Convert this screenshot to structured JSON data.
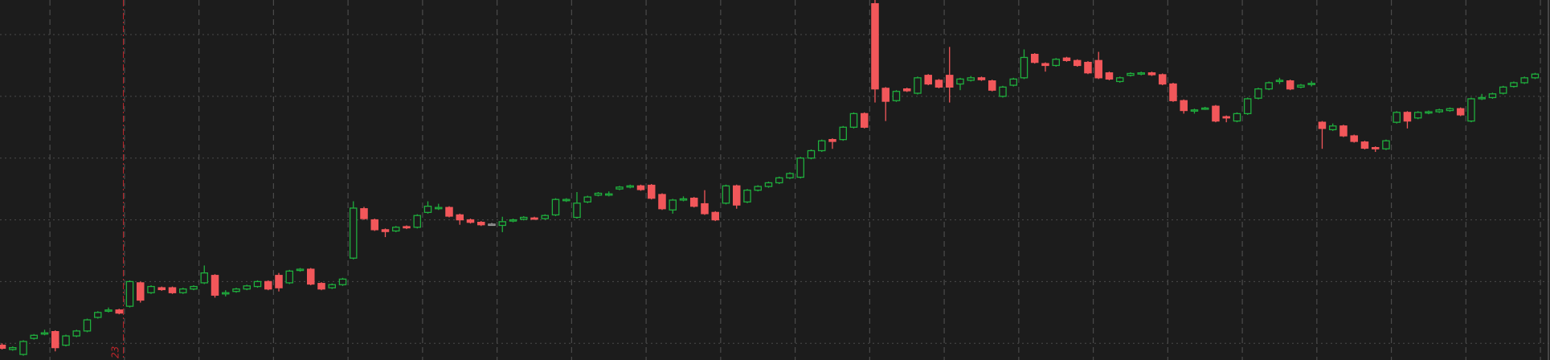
{
  "chart_data": {
    "type": "candlestick",
    "x": [
      0,
      1,
      2,
      3,
      4,
      5,
      6,
      7,
      8,
      9,
      10,
      11,
      12,
      13,
      14,
      15,
      16,
      17,
      18,
      19,
      20,
      21,
      22,
      23,
      24,
      25,
      26,
      27,
      28,
      29,
      30,
      31,
      32,
      33,
      34,
      35,
      36,
      37,
      38,
      39,
      40,
      41,
      42,
      43,
      44,
      45,
      46,
      47,
      48,
      49,
      50,
      51,
      52,
      53,
      54,
      55,
      56,
      57,
      58,
      59,
      60,
      61,
      62,
      63,
      64,
      65,
      66,
      67,
      68,
      69,
      70,
      71,
      72,
      73,
      74,
      75,
      76,
      77,
      78,
      79,
      80,
      81,
      82,
      83,
      84,
      85,
      86,
      87,
      88,
      89,
      90,
      91,
      92,
      93,
      94,
      95,
      96,
      97,
      98,
      99,
      100,
      101,
      102,
      103,
      104,
      105,
      106,
      107,
      108,
      109,
      110,
      111,
      112,
      113,
      114,
      115,
      116,
      117,
      118,
      119,
      120,
      121,
      122,
      123,
      124,
      125,
      126,
      127,
      128,
      129,
      130,
      131,
      132,
      133,
      134,
      135,
      136,
      137,
      138,
      139,
      140,
      141,
      142,
      143,
      144
    ],
    "open": [
      0.97,
      0.9,
      0.82,
      1.08,
      1.15,
      1.19,
      0.97,
      1.12,
      1.2,
      1.42,
      1.52,
      1.54,
      1.6,
      1.98,
      1.82,
      1.9,
      1.9,
      1.82,
      1.88,
      1.98,
      2.1,
      1.8,
      1.84,
      1.88,
      1.92,
      2.0,
      2.1,
      1.98,
      2.18,
      2.2,
      1.97,
      1.9,
      1.95,
      2.38,
      3.18,
      3.0,
      2.84,
      2.82,
      2.89,
      2.88,
      3.12,
      3.18,
      3.2,
      3.08,
      3.0,
      2.96,
      2.93,
      2.91,
      2.98,
      3.01,
      3.03,
      3.02,
      3.08,
      3.31,
      3.04,
      3.29,
      3.4,
      3.4,
      3.5,
      3.53,
      3.55,
      3.56,
      3.41,
      3.16,
      3.32,
      3.35,
      3.26,
      3.12,
      3.27,
      3.55,
      3.29,
      3.48,
      3.54,
      3.6,
      3.68,
      3.69,
      4.0,
      4.12,
      4.3,
      4.3,
      4.5,
      4.72,
      6.5,
      5.13,
      4.93,
      5.12,
      5.05,
      5.34,
      5.26,
      5.34,
      5.2,
      5.26,
      5.3,
      5.25,
      5.0,
      5.18,
      5.3,
      5.68,
      5.53,
      5.5,
      5.62,
      5.58,
      5.55,
      5.58,
      5.38,
      5.24,
      5.34,
      5.36,
      5.38,
      5.35,
      5.2,
      4.93,
      4.77,
      4.8,
      4.84,
      4.67,
      4.6,
      4.72,
      4.97,
      5.12,
      5.24,
      5.25,
      5.15,
      5.2,
      4.58,
      4.46,
      4.52,
      4.36,
      4.26,
      4.17,
      4.15,
      4.58,
      4.74,
      4.65,
      4.73,
      4.75,
      4.77,
      4.8,
      4.6,
      4.96,
      4.98,
      5.05,
      5.16,
      5.22,
      5.3
    ],
    "high": [
      1.0,
      0.95,
      1.05,
      1.15,
      1.22,
      1.21,
      1.14,
      1.22,
      1.4,
      1.52,
      1.58,
      1.56,
      2.02,
      2.0,
      1.94,
      1.92,
      1.92,
      1.9,
      1.94,
      2.26,
      2.12,
      1.86,
      1.9,
      1.95,
      2.02,
      2.02,
      2.14,
      2.19,
      2.22,
      2.22,
      1.99,
      1.97,
      2.06,
      3.3,
      3.21,
      3.02,
      2.86,
      2.9,
      2.91,
      3.09,
      3.3,
      3.26,
      3.22,
      3.1,
      3.02,
      2.98,
      2.95,
      3.05,
      3.02,
      3.06,
      3.05,
      3.09,
      3.35,
      3.35,
      3.45,
      3.39,
      3.45,
      3.46,
      3.55,
      3.57,
      3.57,
      3.58,
      3.43,
      3.34,
      3.38,
      3.37,
      3.48,
      3.14,
      3.57,
      3.57,
      3.5,
      3.56,
      3.62,
      3.7,
      3.77,
      4.02,
      4.14,
      4.3,
      4.32,
      4.52,
      4.74,
      4.74,
      6.56,
      5.15,
      5.1,
      5.14,
      5.32,
      5.36,
      5.28,
      5.8,
      5.3,
      5.33,
      5.32,
      5.27,
      5.17,
      5.3,
      5.76,
      5.7,
      5.55,
      5.62,
      5.64,
      5.6,
      5.57,
      5.72,
      5.4,
      5.32,
      5.39,
      5.4,
      5.4,
      5.37,
      5.22,
      4.95,
      4.8,
      4.83,
      4.86,
      4.69,
      4.74,
      4.98,
      5.14,
      5.24,
      5.3,
      5.27,
      5.2,
      5.25,
      4.6,
      4.56,
      4.54,
      4.38,
      4.28,
      4.19,
      4.3,
      4.76,
      4.76,
      4.76,
      4.77,
      4.8,
      4.82,
      4.82,
      4.98,
      5.04,
      5.06,
      5.17,
      5.24,
      5.32,
      5.38
    ],
    "low": [
      0.9,
      0.88,
      0.8,
      1.06,
      1.13,
      0.87,
      0.95,
      1.1,
      1.18,
      1.4,
      1.5,
      1.47,
      1.58,
      1.66,
      1.8,
      1.85,
      1.8,
      1.8,
      1.86,
      1.96,
      1.74,
      1.76,
      1.82,
      1.86,
      1.9,
      1.86,
      1.84,
      1.96,
      2.16,
      1.94,
      1.86,
      1.88,
      1.93,
      2.36,
      3.0,
      2.82,
      2.72,
      2.8,
      2.85,
      2.86,
      3.1,
      3.16,
      3.04,
      2.92,
      2.94,
      2.9,
      2.91,
      2.8,
      2.96,
      2.99,
      3.0,
      3.0,
      3.06,
      3.29,
      3.02,
      3.27,
      3.38,
      3.38,
      3.48,
      3.51,
      3.47,
      3.33,
      3.16,
      3.1,
      3.3,
      3.2,
      3.08,
      2.98,
      3.25,
      3.18,
      3.27,
      3.46,
      3.52,
      3.58,
      3.66,
      3.67,
      3.98,
      4.1,
      4.15,
      4.28,
      4.48,
      4.48,
      4.9,
      4.6,
      4.91,
      5.07,
      5.03,
      5.18,
      5.13,
      4.9,
      5.1,
      5.24,
      5.25,
      5.08,
      4.98,
      5.16,
      5.28,
      5.53,
      5.4,
      5.48,
      5.56,
      5.48,
      5.36,
      5.28,
      5.26,
      5.22,
      5.32,
      5.34,
      5.33,
      5.18,
      4.91,
      4.72,
      4.72,
      4.78,
      4.58,
      4.58,
      4.58,
      4.7,
      4.95,
      5.1,
      5.2,
      5.1,
      5.13,
      5.16,
      4.15,
      4.44,
      4.34,
      4.25,
      4.14,
      4.1,
      4.13,
      4.56,
      4.48,
      4.63,
      4.71,
      4.73,
      4.75,
      4.68,
      4.58,
      4.94,
      4.96,
      5.03,
      5.14,
      5.2,
      5.28
    ],
    "close": [
      0.92,
      0.93,
      1.03,
      1.13,
      1.17,
      0.93,
      1.12,
      1.2,
      1.38,
      1.5,
      1.54,
      1.49,
      2.0,
      1.7,
      1.92,
      1.87,
      1.82,
      1.88,
      1.92,
      2.14,
      1.78,
      1.82,
      1.88,
      1.93,
      2.0,
      1.88,
      1.9,
      2.17,
      2.2,
      1.96,
      1.88,
      1.95,
      2.04,
      3.19,
      3.02,
      2.84,
      2.81,
      2.88,
      2.87,
      3.07,
      3.22,
      3.2,
      3.06,
      3.0,
      2.96,
      2.92,
      2.93,
      2.97,
      3.0,
      3.04,
      3.02,
      3.07,
      3.33,
      3.33,
      3.27,
      3.37,
      3.43,
      3.42,
      3.53,
      3.55,
      3.49,
      3.35,
      3.18,
      3.32,
      3.34,
      3.22,
      3.1,
      3.0,
      3.55,
      3.24,
      3.48,
      3.54,
      3.6,
      3.68,
      3.75,
      4.0,
      4.12,
      4.28,
      4.27,
      4.5,
      4.72,
      4.5,
      5.12,
      4.92,
      5.08,
      5.09,
      5.3,
      5.2,
      5.15,
      5.15,
      5.28,
      5.3,
      5.27,
      5.1,
      5.15,
      5.28,
      5.63,
      5.55,
      5.5,
      5.6,
      5.58,
      5.5,
      5.38,
      5.3,
      5.28,
      5.3,
      5.37,
      5.38,
      5.35,
      5.2,
      4.93,
      4.77,
      4.78,
      4.81,
      4.6,
      4.65,
      4.72,
      4.96,
      5.12,
      5.22,
      5.26,
      5.12,
      5.18,
      5.21,
      4.48,
      4.52,
      4.36,
      4.27,
      4.16,
      4.15,
      4.28,
      4.74,
      4.6,
      4.74,
      4.75,
      4.78,
      4.8,
      4.7,
      4.96,
      4.98,
      5.04,
      5.15,
      5.22,
      5.3,
      5.36
    ],
    "up_color": "#1fae3d",
    "down_color": "#f2575a",
    "flat_color": "#9a9a9a",
    "xlim": [
      -0.19,
      145.4
    ],
    "ylim": [
      0.73,
      6.56
    ],
    "xticks": [
      4.5,
      11.5,
      18.5,
      25.5,
      32.5,
      39.5,
      46.5,
      53.5,
      60.5,
      67.5,
      74.5,
      81.5,
      88.5,
      95.5,
      102.5,
      109.5,
      116.5,
      123.5,
      130.5,
      137.5,
      144.5
    ],
    "yticks": [
      1,
      2,
      3,
      4,
      5,
      6
    ],
    "grid": true,
    "marker_x": 11.4,
    "marker_label": "23",
    "marker_color": "#c0262b"
  }
}
